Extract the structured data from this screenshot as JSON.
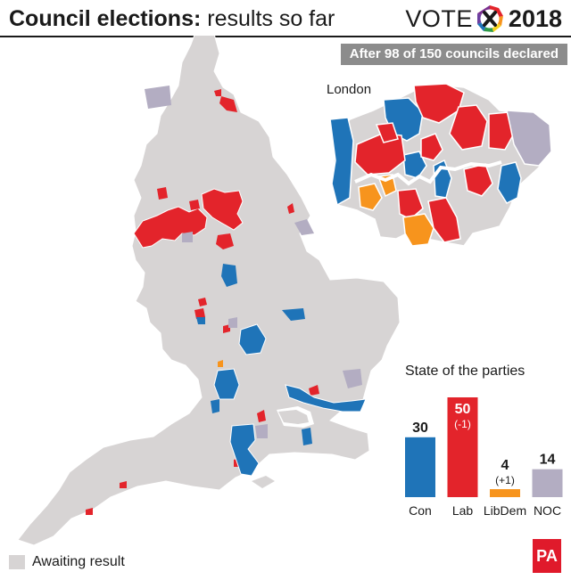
{
  "header": {
    "title_bold": "Council elections:",
    "title_rest": " results so far",
    "logo_left": "VOTE",
    "logo_year": "2018"
  },
  "badge": "After 98 of 150 councils declared",
  "inset": {
    "label": "London"
  },
  "colors": {
    "con": "#1f74b8",
    "lab": "#e3242b",
    "libdem": "#f7941d",
    "noc": "#b3adc2",
    "awaiting": "#d7d4d4"
  },
  "chart_data": {
    "type": "bar",
    "title": "State of the parties",
    "categories": [
      "Con",
      "Lab",
      "LibDem",
      "NOC"
    ],
    "values": [
      30,
      50,
      4,
      14
    ],
    "changes": [
      "",
      "(-1)",
      "(+1)",
      ""
    ],
    "colors": [
      "#1f74b8",
      "#e3242b",
      "#f7941d",
      "#b3adc2"
    ]
  },
  "legend": {
    "awaiting_label": "Awaiting result"
  },
  "credit": "PA"
}
